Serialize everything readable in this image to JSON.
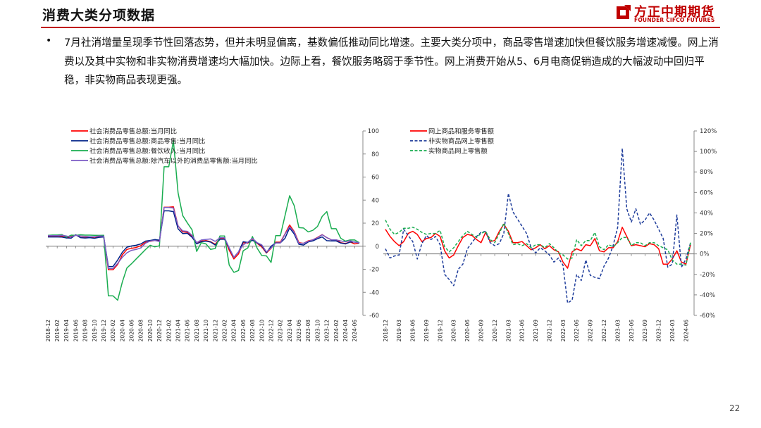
{
  "header": {
    "title": "消费大类分项数据",
    "logo_cn": "方正中期期货",
    "logo_en": "FOUNDER CIFCO FUTURES",
    "accent_color": "#c00000",
    "logo_icon": "founder-logo-icon"
  },
  "bullet": {
    "text": "7月社消增量呈现季节性回落态势，但并未明显偏离，基数偏低推动同比增速。主要大类分项中，商品零售增速加快但餐饮服务增速减慢。网上消费以及其中实物和非实物消费增速均大幅加快。边际上看，餐饮服务略弱于季节性。网上消费开始从5、6月电商促销造成的大幅波动中回归平稳，非实物商品表现更强。"
  },
  "page_number": "22",
  "chart_data": [
    {
      "type": "line",
      "x": [
        "2018-12",
        "2019-01",
        "2019-02",
        "2019-03",
        "2019-04",
        "2019-05",
        "2019-06",
        "2019-07",
        "2019-08",
        "2019-09",
        "2019-10",
        "2019-11",
        "2019-12",
        "2020-01",
        "2020-02",
        "2020-03",
        "2020-04",
        "2020-05",
        "2020-06",
        "2020-07",
        "2020-08",
        "2020-09",
        "2020-10",
        "2020-11",
        "2020-12",
        "2021-01",
        "2021-02",
        "2021-03",
        "2021-04",
        "2021-05",
        "2021-06",
        "2021-07",
        "2021-08",
        "2021-09",
        "2021-10",
        "2021-11",
        "2021-12",
        "2022-01",
        "2022-02",
        "2022-03",
        "2022-04",
        "2022-05",
        "2022-06",
        "2022-07",
        "2022-08",
        "2022-09",
        "2022-10",
        "2022-11",
        "2022-12",
        "2023-01",
        "2023-02",
        "2023-03",
        "2023-04",
        "2023-05",
        "2023-06",
        "2023-07",
        "2023-08",
        "2023-09",
        "2023-10",
        "2023-11",
        "2023-12",
        "2024-01",
        "2024-02",
        "2024-03",
        "2024-04",
        "2024-05",
        "2024-06",
        "2024-07"
      ],
      "x_tick_labels": [
        "2018-12",
        "2019-02",
        "2019-04",
        "2019-06",
        "2019-08",
        "2019-10",
        "2019-12",
        "2020-02",
        "2020-04",
        "2020-06",
        "2020-08",
        "2020-10",
        "2020-12",
        "2021-02",
        "2021-04",
        "2021-06",
        "2021-08",
        "2021-10",
        "2021-12",
        "2022-02",
        "2022-04",
        "2022-06",
        "2022-08",
        "2022-10",
        "2022-12",
        "2023-02",
        "2023-04",
        "2023-06",
        "2023-08",
        "2023-10",
        "2023-12",
        "2024-02",
        "2024-04",
        "2024-06"
      ],
      "ylim": [
        -60,
        100
      ],
      "y_ticks": [
        -60,
        -40,
        -20,
        0,
        20,
        40,
        60,
        80,
        100
      ],
      "y_axis_side": "right",
      "legend_position": "top-left",
      "series": [
        {
          "name": "社会消费品零售总额:当月同比",
          "color": "#ff0000",
          "style": "solid",
          "values": [
            8.2,
            8.2,
            8.2,
            8.7,
            7.2,
            8.6,
            9.8,
            7.6,
            7.5,
            7.8,
            7.2,
            8.0,
            8.0,
            -20.5,
            -20.5,
            -15.8,
            -7.5,
            -2.8,
            -1.8,
            -1.1,
            0.5,
            3.3,
            4.3,
            5.0,
            4.6,
            33.8,
            33.8,
            34.2,
            17.7,
            12.4,
            12.1,
            8.5,
            2.5,
            4.4,
            4.9,
            3.9,
            1.7,
            6.7,
            6.7,
            -3.5,
            -11.1,
            -6.7,
            3.1,
            2.7,
            5.4,
            2.5,
            -0.5,
            -5.9,
            -1.8,
            3.5,
            3.5,
            10.6,
            18.4,
            12.7,
            3.1,
            2.5,
            4.6,
            5.5,
            7.6,
            10.1,
            7.4,
            5.5,
            5.5,
            3.1,
            2.3,
            3.7,
            2.0,
            2.7
          ]
        },
        {
          "name": "社会消费品零售总额:商品零售:当月同比",
          "color": "#002288",
          "style": "solid",
          "values": [
            8.0,
            8.0,
            8.0,
            7.9,
            7.2,
            7.0,
            9.9,
            7.4,
            7.1,
            7.4,
            6.9,
            7.7,
            8.0,
            -17.6,
            -17.6,
            -12.0,
            -5.3,
            -0.8,
            0.2,
            0.8,
            2.0,
            4.4,
            5.0,
            5.8,
            5.2,
            30.7,
            30.7,
            30.0,
            15.1,
            10.9,
            11.2,
            7.8,
            2.0,
            3.9,
            4.4,
            3.6,
            1.0,
            6.0,
            6.0,
            -1.8,
            -9.7,
            -5.0,
            3.9,
            3.2,
            5.1,
            2.8,
            0.5,
            -5.6,
            -0.1,
            2.9,
            2.9,
            6.8,
            15.9,
            10.5,
            1.7,
            1.0,
            3.7,
            4.6,
            6.5,
            8.0,
            4.8,
            4.6,
            4.6,
            2.7,
            2.0,
            3.6,
            3.7,
            2.7
          ]
        },
        {
          "name": "社会消费品零售总额:餐饮收入:当月同比",
          "color": "#1aad50",
          "style": "solid",
          "values": [
            9.4,
            9.7,
            9.7,
            10.1,
            7.8,
            9.6,
            9.4,
            9.9,
            9.6,
            9.6,
            9.5,
            9.4,
            9.5,
            -43.1,
            -43.1,
            -46.8,
            -31.1,
            -18.9,
            -15.2,
            -11.0,
            -7.0,
            -2.9,
            0.8,
            -0.6,
            0.4,
            68.9,
            68.9,
            91.6,
            46.4,
            26.6,
            20.2,
            14.3,
            -4.5,
            3.1,
            2.0,
            -2.7,
            -2.0,
            8.9,
            8.9,
            -16.4,
            -22.7,
            -21.1,
            -4.0,
            -1.5,
            8.4,
            -1.7,
            -8.1,
            -8.4,
            -14.1,
            9.2,
            9.2,
            26.3,
            43.8,
            35.1,
            16.1,
            15.8,
            12.4,
            13.8,
            17.1,
            25.8,
            30.0,
            15.2,
            15.2,
            6.9,
            4.4,
            5.4,
            5.4,
            3.0
          ]
        },
        {
          "name": "社会消费品零售总额:除汽车以外的消费品零售额:当月同比",
          "color": "#7b5cc4",
          "style": "solid",
          "values": [
            9.2,
            9.2,
            9.2,
            9.5,
            8.8,
            8.0,
            9.5,
            8.8,
            8.6,
            8.2,
            8.3,
            8.8,
            8.7,
            -19.3,
            -19.3,
            -14.9,
            -9.6,
            -5.7,
            -3.6,
            -2.8,
            -1.5,
            2.6,
            4.5,
            5.0,
            4.0,
            33.6,
            33.6,
            33.1,
            17.6,
            13.3,
            12.9,
            9.5,
            3.1,
            5.4,
            5.9,
            6.3,
            4.2,
            7.3,
            7.3,
            -1.4,
            -9.7,
            -4.8,
            1.2,
            3.5,
            6.8,
            3.1,
            1.2,
            -4.9,
            -1.5,
            2.8,
            2.8,
            10.3,
            16.9,
            12.1,
            2.4,
            2.6,
            4.2,
            5.6,
            7.3,
            9.9,
            7.5,
            5.5,
            5.5,
            4.6,
            3.8,
            4.8,
            3.4,
            3.2
          ]
        }
      ]
    },
    {
      "type": "line",
      "x": [
        "2018-12",
        "2019-01",
        "2019-02",
        "2019-03",
        "2019-04",
        "2019-05",
        "2019-06",
        "2019-07",
        "2019-08",
        "2019-09",
        "2019-10",
        "2019-11",
        "2019-12",
        "2020-01",
        "2020-02",
        "2020-03",
        "2020-04",
        "2020-05",
        "2020-06",
        "2020-07",
        "2020-08",
        "2020-09",
        "2020-10",
        "2020-11",
        "2020-12",
        "2021-01",
        "2021-02",
        "2021-03",
        "2021-04",
        "2021-05",
        "2021-06",
        "2021-07",
        "2021-08",
        "2021-09",
        "2021-10",
        "2021-11",
        "2021-12",
        "2022-01",
        "2022-02",
        "2022-03",
        "2022-04",
        "2022-05",
        "2022-06",
        "2022-07",
        "2022-08",
        "2022-09",
        "2022-10",
        "2022-11",
        "2022-12",
        "2023-01",
        "2023-02",
        "2023-03",
        "2023-04",
        "2023-05",
        "2023-06",
        "2023-07",
        "2023-08",
        "2023-09",
        "2023-10",
        "2023-11",
        "2023-12",
        "2024-01",
        "2024-02",
        "2024-03",
        "2024-04",
        "2024-05",
        "2024-06",
        "2024-07"
      ],
      "x_tick_labels": [
        "2018-12",
        "2019-03",
        "2019-06",
        "2019-09",
        "2019-12",
        "2020-03",
        "2020-06",
        "2020-09",
        "2020-12",
        "2021-03",
        "2021-06",
        "2021-09",
        "2021-12",
        "2022-03",
        "2022-06",
        "2022-09",
        "2022-12",
        "2023-03",
        "2023-06",
        "2023-09",
        "2023-12",
        "2024-03",
        "2024-06"
      ],
      "ylim": [
        -60,
        120
      ],
      "y_ticks": [
        "-60%",
        "-40%",
        "-20%",
        "0%",
        "20%",
        "40%",
        "60%",
        "80%",
        "100%",
        "120%"
      ],
      "y_axis_side": "right",
      "y_unit": "%",
      "legend_position": "top-left",
      "series": [
        {
          "name": "网上商品和服务零售额",
          "color": "#ff0000",
          "style": "solid",
          "values": [
            24,
            17,
            12,
            8,
            12,
            20,
            22,
            19,
            12,
            15,
            16,
            20,
            17,
            3,
            -4,
            -1,
            8,
            16,
            19,
            18,
            14,
            11,
            21,
            12,
            13,
            22,
            29,
            22,
            11,
            11,
            12,
            8,
            4,
            6,
            9,
            5,
            8,
            4,
            2,
            -8,
            -14,
            2,
            5,
            3,
            9,
            8,
            15,
            3,
            2,
            6,
            6,
            12,
            26,
            17,
            8,
            9,
            8,
            7,
            10,
            9,
            5,
            -10,
            -10,
            -5,
            3,
            -8,
            -10,
            9
          ]
        },
        {
          "name": "非实物商品网上零售额",
          "color": "#1f3d9b",
          "style": "dashed",
          "values": [
            5,
            -4,
            -2,
            -1,
            24,
            18,
            12,
            -5,
            10,
            18,
            14,
            17,
            9,
            -20,
            -25,
            -31,
            -15,
            -10,
            5,
            11,
            17,
            21,
            22,
            11,
            8,
            10,
            20,
            59,
            41,
            34,
            27,
            20,
            6,
            1,
            6,
            3,
            -1,
            -8,
            -4,
            -11,
            -48,
            -45,
            -20,
            -26,
            -6,
            -21,
            -23,
            -24,
            -12,
            -4,
            8,
            26,
            103,
            44,
            31,
            44,
            29,
            33,
            40,
            33,
            24,
            15,
            -13,
            -10,
            38,
            -13,
            -5,
            11
          ]
        },
        {
          "name": "实物商品网上零售额",
          "color": "#1aad50",
          "style": "dashed",
          "values": [
            33,
            24,
            19,
            21,
            25,
            25,
            26,
            24,
            21,
            19,
            20,
            20,
            23,
            7,
            2,
            6,
            12,
            18,
            22,
            19,
            16,
            20,
            22,
            14,
            11,
            20,
            30,
            20,
            9,
            10,
            8,
            10,
            6,
            9,
            9,
            6,
            10,
            6,
            1,
            -1,
            -5,
            -4,
            14,
            8,
            13,
            13,
            21,
            7,
            4,
            9,
            7,
            11,
            16,
            16,
            8,
            11,
            11,
            8,
            11,
            11,
            8,
            6,
            4,
            -6,
            -10,
            -10,
            -11,
            11
          ]
        }
      ]
    }
  ]
}
